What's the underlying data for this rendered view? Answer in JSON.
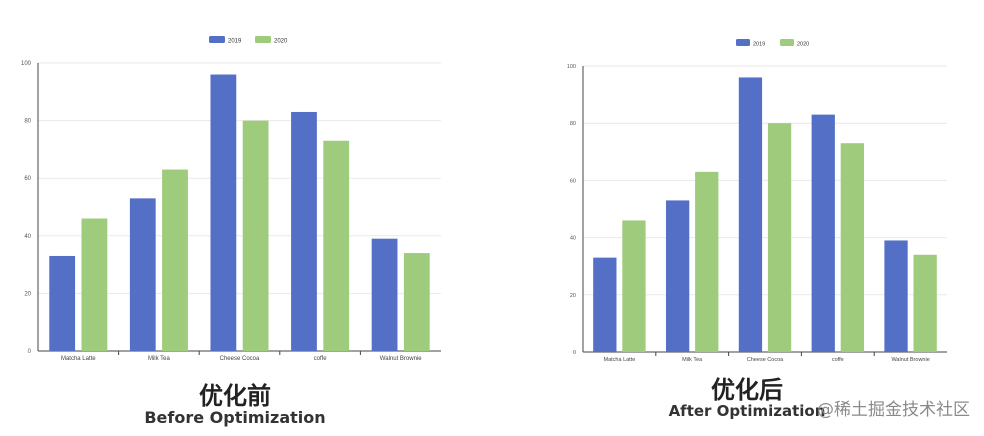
{
  "chart_data": [
    {
      "type": "bar",
      "categories": [
        "Matcha Latte",
        "Milk Tea",
        "Cheese Cocoa",
        "coffe",
        "Walnut Brownie"
      ],
      "series": [
        {
          "name": "2019",
          "values": [
            33,
            53,
            96,
            83,
            39
          ]
        },
        {
          "name": "2020",
          "values": [
            46,
            63,
            80,
            73,
            34
          ]
        }
      ],
      "ylim": [
        0,
        100
      ],
      "yticks": [
        0,
        20,
        40,
        60,
        80,
        100
      ],
      "grid": true,
      "legend": "top-center",
      "colors": [
        "#5470c6",
        "#9ecb7c"
      ]
    },
    {
      "type": "bar",
      "categories": [
        "Matcha Latte",
        "Milk Tea",
        "Cheese Cocoa",
        "coffe",
        "Walnut Brownie"
      ],
      "series": [
        {
          "name": "2019",
          "values": [
            33,
            53,
            96,
            83,
            39
          ]
        },
        {
          "name": "2020",
          "values": [
            46,
            63,
            80,
            73,
            34
          ]
        }
      ],
      "ylim": [
        0,
        100
      ],
      "yticks": [
        0,
        20,
        40,
        60,
        80,
        100
      ],
      "grid": true,
      "legend": "top-center",
      "colors": [
        "#5470c6",
        "#9ecb7c"
      ]
    }
  ],
  "captions": {
    "left_cn": "优化前",
    "left_en": "Before Optimization",
    "right_cn": "优化后",
    "right_en": "After Optimization"
  },
  "watermark": "@稀土掘金技术社区"
}
